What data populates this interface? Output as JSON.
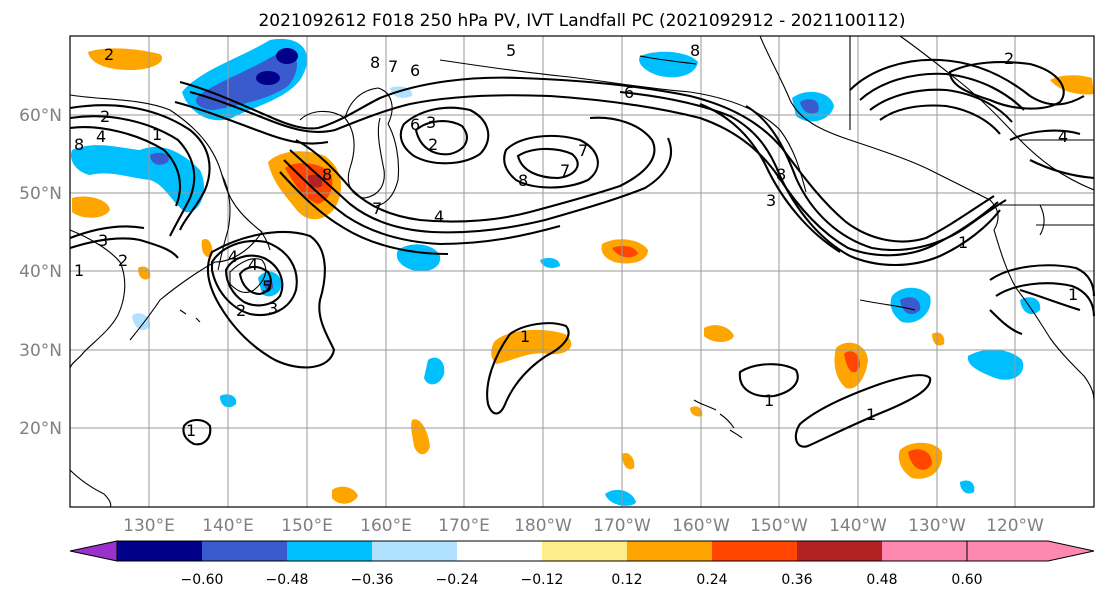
{
  "figure": {
    "title": "2021092612 F018 250 hPa PV, IVT Landfall PC (2021092912 - 2021100112)"
  },
  "map": {
    "lat_labels": [
      "60°N",
      "50°N",
      "40°N",
      "30°N",
      "20°N"
    ],
    "lon_labels": [
      "130°E",
      "140°E",
      "150°E",
      "160°E",
      "170°E",
      "180°W",
      "170°W",
      "160°W",
      "150°W",
      "140°W",
      "130°W",
      "120°W"
    ],
    "contour_labels": [
      "2",
      "8",
      "6",
      "7",
      "8",
      "5",
      "6",
      "2",
      "3",
      "1",
      "4",
      "6",
      "8",
      "7",
      "2",
      "7",
      "4",
      "8",
      "7",
      "8",
      "3",
      "8",
      "1",
      "4",
      "3",
      "2",
      "1",
      "4",
      "2",
      "1",
      "3",
      "4",
      "5",
      "1",
      "1",
      "1",
      "1",
      "2"
    ]
  },
  "colorbar": {
    "tick_labels": [
      "−0.60",
      "−0.48",
      "−0.36",
      "−0.24",
      "−0.12",
      "0.12",
      "0.24",
      "0.36",
      "0.48",
      "0.60"
    ],
    "colors": [
      "#9932cc",
      "#00008b",
      "#3a5bcd",
      "#00bfff",
      "#b0e2ff",
      "#ffffff",
      "#ffec8b",
      "#ffa500",
      "#ff4500",
      "#b22222",
      "#ff88b0"
    ]
  }
}
